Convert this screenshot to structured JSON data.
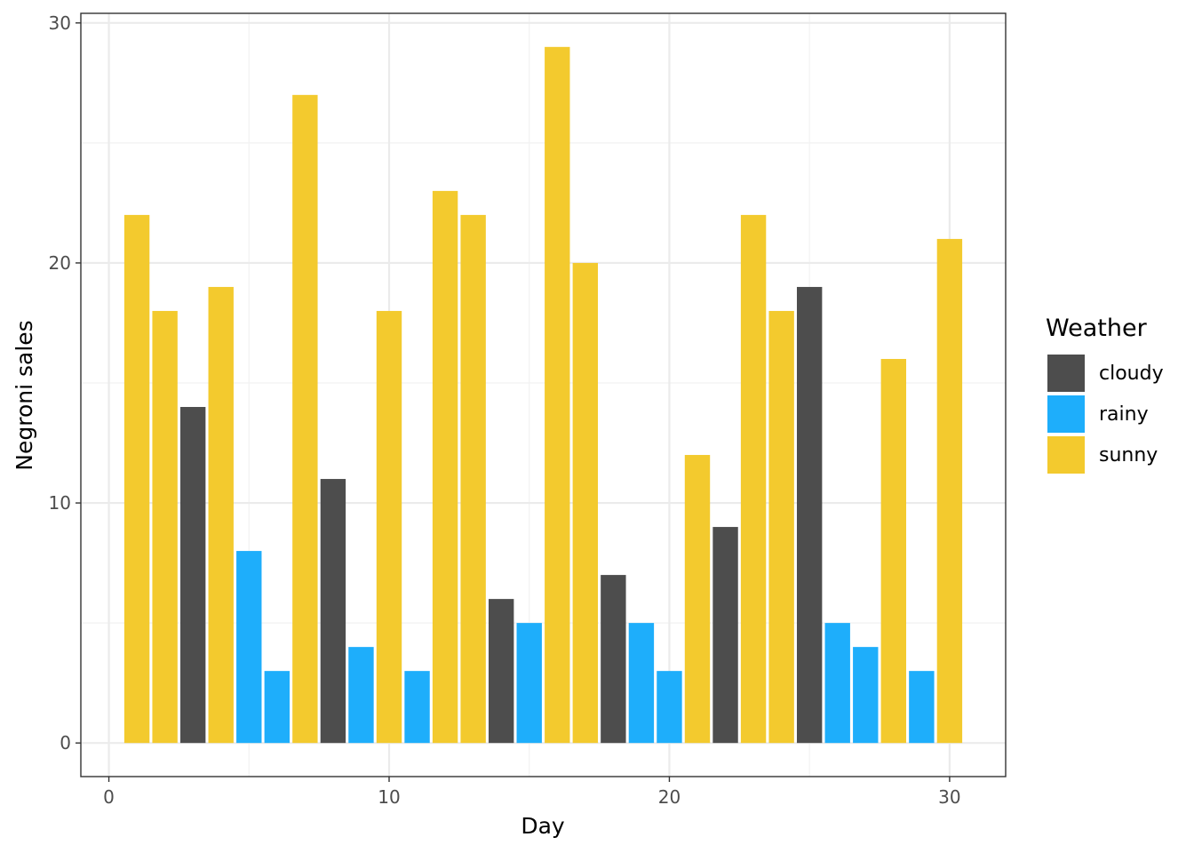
{
  "chart_data": {
    "type": "bar",
    "xlabel": "Day",
    "ylabel": "Negroni sales",
    "xlim": [
      -1,
      32
    ],
    "ylim": [
      -1.4,
      30.4
    ],
    "x_ticks": [
      "0",
      "10",
      "20",
      "30"
    ],
    "y_ticks": [
      "0",
      "10",
      "20",
      "30"
    ],
    "grid": true,
    "legend": {
      "title": "Weather",
      "placement": "right",
      "entries": [
        {
          "label": "cloudy",
          "color": "#4d4d4d"
        },
        {
          "label": "rainy",
          "color": "#1eaefb"
        },
        {
          "label": "sunny",
          "color": "#f3ca2e"
        }
      ]
    },
    "x": [
      1,
      2,
      3,
      4,
      5,
      6,
      7,
      8,
      9,
      10,
      11,
      12,
      13,
      14,
      15,
      16,
      17,
      18,
      19,
      20,
      21,
      22,
      23,
      24,
      25,
      26,
      27,
      28,
      29,
      30
    ],
    "values": [
      22,
      18,
      14,
      19,
      8,
      3,
      27,
      11,
      4,
      18,
      3,
      23,
      22,
      6,
      5,
      29,
      20,
      7,
      5,
      3,
      12,
      9,
      22,
      18,
      19,
      5,
      4,
      16,
      3,
      21
    ],
    "weather": [
      "sunny",
      "sunny",
      "cloudy",
      "sunny",
      "rainy",
      "rainy",
      "sunny",
      "cloudy",
      "rainy",
      "sunny",
      "rainy",
      "sunny",
      "sunny",
      "cloudy",
      "rainy",
      "sunny",
      "sunny",
      "cloudy",
      "rainy",
      "rainy",
      "sunny",
      "cloudy",
      "sunny",
      "sunny",
      "cloudy",
      "rainy",
      "rainy",
      "sunny",
      "rainy",
      "sunny"
    ]
  }
}
